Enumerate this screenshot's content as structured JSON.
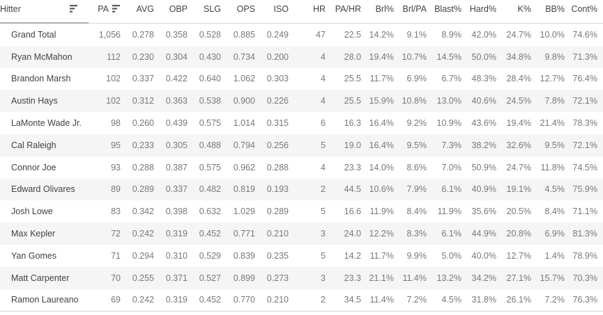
{
  "chart_data": {
    "type": "table",
    "columns": [
      {
        "label": "Hitter",
        "sorted": true
      },
      {
        "label": "PA",
        "sorted": true
      },
      {
        "label": "AVG"
      },
      {
        "label": "OBP"
      },
      {
        "label": "SLG"
      },
      {
        "label": "OPS"
      },
      {
        "label": "ISO"
      },
      {
        "label": "HR"
      },
      {
        "label": "PA/HR"
      },
      {
        "label": "Brl%"
      },
      {
        "label": "Brl/PA"
      },
      {
        "label": "Blast%"
      },
      {
        "label": "Hard%"
      },
      {
        "label": "K%"
      },
      {
        "label": "BB%"
      },
      {
        "label": "Cont%"
      }
    ],
    "rows": [
      {
        "name": "Grand Total",
        "values": [
          "1,056",
          "0.278",
          "0.358",
          "0.528",
          "0.885",
          "0.249",
          "47",
          "22.5",
          "14.2%",
          "9.1%",
          "8.9%",
          "42.0%",
          "24.7%",
          "10.0%",
          "74.6%"
        ]
      },
      {
        "name": "Ryan McMahon",
        "values": [
          "112",
          "0.230",
          "0.304",
          "0.430",
          "0.734",
          "0.200",
          "4",
          "28.0",
          "19.4%",
          "10.7%",
          "14.5%",
          "50.0%",
          "34.8%",
          "9.8%",
          "71.3%"
        ]
      },
      {
        "name": "Brandon Marsh",
        "values": [
          "102",
          "0.337",
          "0.422",
          "0.640",
          "1.062",
          "0.303",
          "4",
          "25.5",
          "11.7%",
          "6.9%",
          "6.7%",
          "48.3%",
          "28.4%",
          "12.7%",
          "76.4%"
        ]
      },
      {
        "name": "Austin Hays",
        "values": [
          "102",
          "0.312",
          "0.363",
          "0.538",
          "0.900",
          "0.226",
          "4",
          "25.5",
          "15.9%",
          "10.8%",
          "13.0%",
          "40.6%",
          "24.5%",
          "7.8%",
          "72.1%"
        ]
      },
      {
        "name": "LaMonte Wade Jr.",
        "values": [
          "98",
          "0.260",
          "0.439",
          "0.575",
          "1.014",
          "0.315",
          "6",
          "16.3",
          "16.4%",
          "9.2%",
          "10.9%",
          "43.6%",
          "19.4%",
          "21.4%",
          "78.3%"
        ]
      },
      {
        "name": "Cal Raleigh",
        "values": [
          "95",
          "0.233",
          "0.305",
          "0.488",
          "0.794",
          "0.256",
          "5",
          "19.0",
          "16.4%",
          "9.5%",
          "7.3%",
          "38.2%",
          "32.6%",
          "9.5%",
          "72.1%"
        ]
      },
      {
        "name": "Connor Joe",
        "values": [
          "93",
          "0.288",
          "0.387",
          "0.575",
          "0.962",
          "0.288",
          "4",
          "23.3",
          "14.0%",
          "8.6%",
          "7.0%",
          "50.9%",
          "24.7%",
          "11.8%",
          "74.5%"
        ]
      },
      {
        "name": "Edward Olivares",
        "values": [
          "89",
          "0.289",
          "0.337",
          "0.482",
          "0.819",
          "0.193",
          "2",
          "44.5",
          "10.6%",
          "7.9%",
          "6.1%",
          "40.9%",
          "19.1%",
          "4.5%",
          "75.9%"
        ]
      },
      {
        "name": "Josh Lowe",
        "values": [
          "83",
          "0.342",
          "0.398",
          "0.632",
          "1.029",
          "0.289",
          "5",
          "16.6",
          "11.9%",
          "8.4%",
          "11.9%",
          "35.6%",
          "20.5%",
          "8.4%",
          "71.1%"
        ]
      },
      {
        "name": "Max Kepler",
        "values": [
          "72",
          "0.242",
          "0.319",
          "0.452",
          "0.771",
          "0.210",
          "3",
          "24.0",
          "12.2%",
          "8.3%",
          "6.1%",
          "44.9%",
          "20.8%",
          "6.9%",
          "81.3%"
        ]
      },
      {
        "name": "Yan Gomes",
        "values": [
          "71",
          "0.294",
          "0.310",
          "0.529",
          "0.839",
          "0.235",
          "5",
          "14.2",
          "11.7%",
          "9.9%",
          "5.0%",
          "40.0%",
          "12.7%",
          "1.4%",
          "78.9%"
        ]
      },
      {
        "name": "Matt Carpenter",
        "values": [
          "70",
          "0.255",
          "0.371",
          "0.527",
          "0.899",
          "0.273",
          "3",
          "23.3",
          "21.1%",
          "11.4%",
          "13.2%",
          "34.2%",
          "27.1%",
          "15.7%",
          "70.3%"
        ]
      },
      {
        "name": "Ramon Laureano",
        "values": [
          "69",
          "0.242",
          "0.319",
          "0.452",
          "0.770",
          "0.210",
          "2",
          "34.5",
          "11.4%",
          "7.2%",
          "4.5%",
          "31.8%",
          "26.1%",
          "7.2%",
          "76.3%"
        ]
      }
    ],
    "layout": {
      "row_banding": true,
      "banding_color": "#f5f5f5",
      "header_text_color": "#424242",
      "value_text_color": "#787878",
      "sort_icon": "sort-descending-icon"
    }
  }
}
